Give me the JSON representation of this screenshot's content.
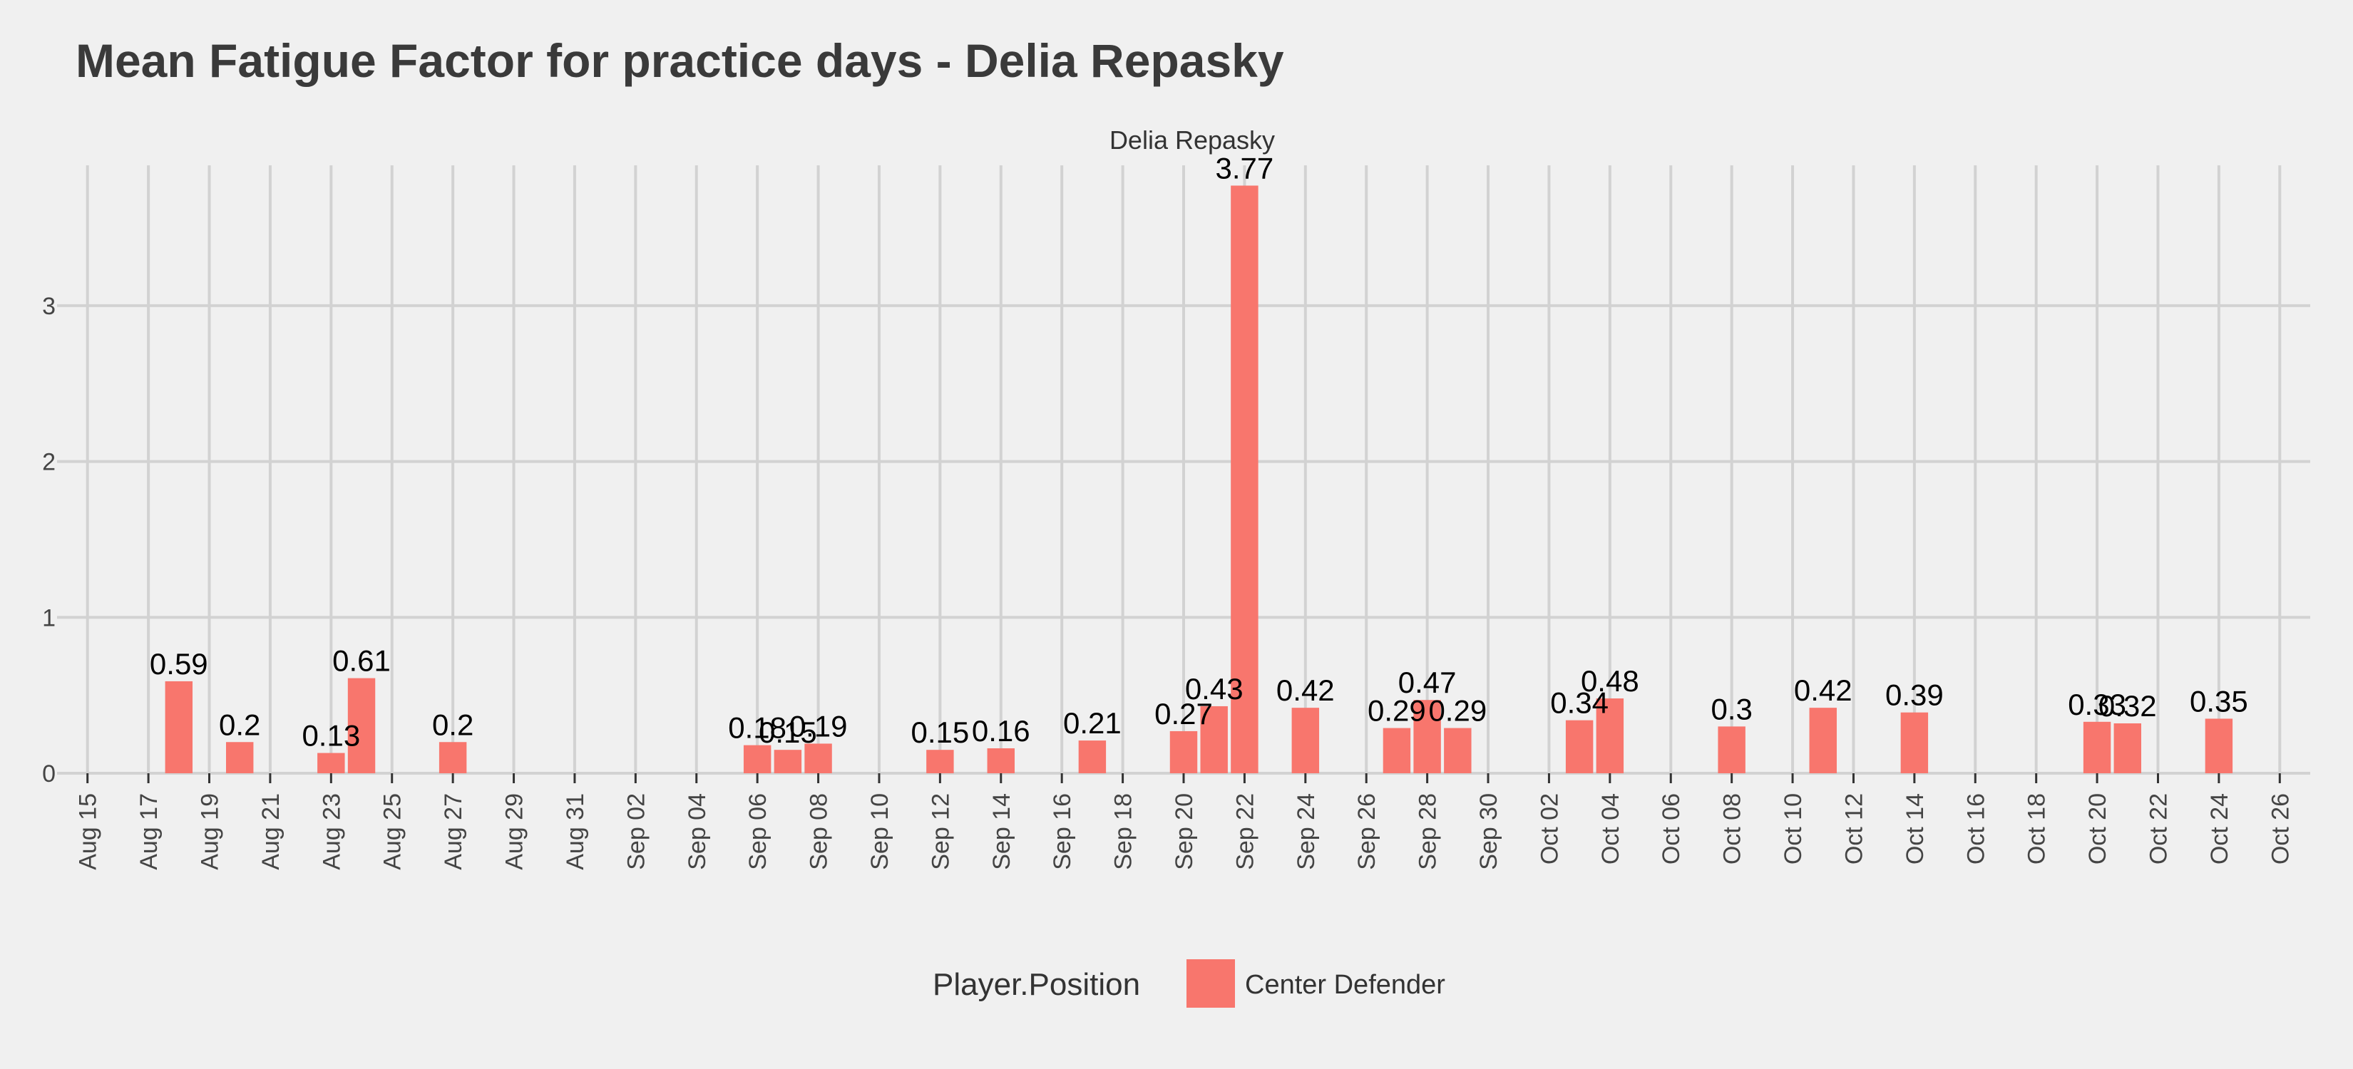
{
  "chart_data": {
    "type": "bar",
    "title": "Mean Fatigue Factor for practice days -  Delia Repasky",
    "subtitle": "Delia Repasky",
    "xlabel": "",
    "ylabel": "",
    "ylim": [
      0,
      3.9
    ],
    "y_ticks": [
      0,
      1,
      2,
      3
    ],
    "x_range": [
      "2022-08-14",
      "2022-10-27"
    ],
    "x_ticks": [
      "Aug 15",
      "Aug 17",
      "Aug 19",
      "Aug 21",
      "Aug 23",
      "Aug 25",
      "Aug 27",
      "Aug 29",
      "Aug 31",
      "Sep 02",
      "Sep 04",
      "Sep 06",
      "Sep 08",
      "Sep 10",
      "Sep 12",
      "Sep 14",
      "Sep 16",
      "Sep 18",
      "Sep 20",
      "Sep 22",
      "Sep 24",
      "Sep 26",
      "Sep 28",
      "Sep 30",
      "Oct 02",
      "Oct 04",
      "Oct 06",
      "Oct 08",
      "Oct 10",
      "Oct 12",
      "Oct 14",
      "Oct 16",
      "Oct 18",
      "Oct 20",
      "Oct 22",
      "Oct 24",
      "Oct 26"
    ],
    "grid": true,
    "legend": {
      "title": "Player.Position",
      "position": "bottom"
    },
    "series": [
      {
        "name": "Center Defender",
        "color": "#f8766d",
        "points": [
          {
            "date": "2022-08-18",
            "value": 0.59,
            "label": "0.59"
          },
          {
            "date": "2022-08-20",
            "value": 0.2,
            "label": "0.2"
          },
          {
            "date": "2022-08-23",
            "value": 0.13,
            "label": "0.13"
          },
          {
            "date": "2022-08-24",
            "value": 0.61,
            "label": "0.61"
          },
          {
            "date": "2022-08-27",
            "value": 0.2,
            "label": "0.2"
          },
          {
            "date": "2022-09-06",
            "value": 0.18,
            "label": "0.18"
          },
          {
            "date": "2022-09-07",
            "value": 0.15,
            "label": "0.15"
          },
          {
            "date": "2022-09-08",
            "value": 0.19,
            "label": "0.19"
          },
          {
            "date": "2022-09-12",
            "value": 0.15,
            "label": "0.15"
          },
          {
            "date": "2022-09-14",
            "value": 0.16,
            "label": "0.16"
          },
          {
            "date": "2022-09-17",
            "value": 0.21,
            "label": "0.21"
          },
          {
            "date": "2022-09-20",
            "value": 0.27,
            "label": "0.27"
          },
          {
            "date": "2022-09-21",
            "value": 0.43,
            "label": "0.43"
          },
          {
            "date": "2022-09-22",
            "value": 3.77,
            "label": "3.77"
          },
          {
            "date": "2022-09-24",
            "value": 0.42,
            "label": "0.42"
          },
          {
            "date": "2022-09-27",
            "value": 0.29,
            "label": "0.29"
          },
          {
            "date": "2022-09-28",
            "value": 0.47,
            "label": "0.47"
          },
          {
            "date": "2022-09-29",
            "value": 0.29,
            "label": "0.29"
          },
          {
            "date": "2022-10-03",
            "value": 0.34,
            "label": "0.34"
          },
          {
            "date": "2022-10-04",
            "value": 0.48,
            "label": "0.48"
          },
          {
            "date": "2022-10-08",
            "value": 0.3,
            "label": "0.3"
          },
          {
            "date": "2022-10-11",
            "value": 0.42,
            "label": "0.42"
          },
          {
            "date": "2022-10-14",
            "value": 0.39,
            "label": "0.39"
          },
          {
            "date": "2022-10-20",
            "value": 0.33,
            "label": "0.33"
          },
          {
            "date": "2022-10-21",
            "value": 0.32,
            "label": "0.32"
          },
          {
            "date": "2022-10-24",
            "value": 0.35,
            "label": "0.35"
          }
        ]
      }
    ]
  }
}
